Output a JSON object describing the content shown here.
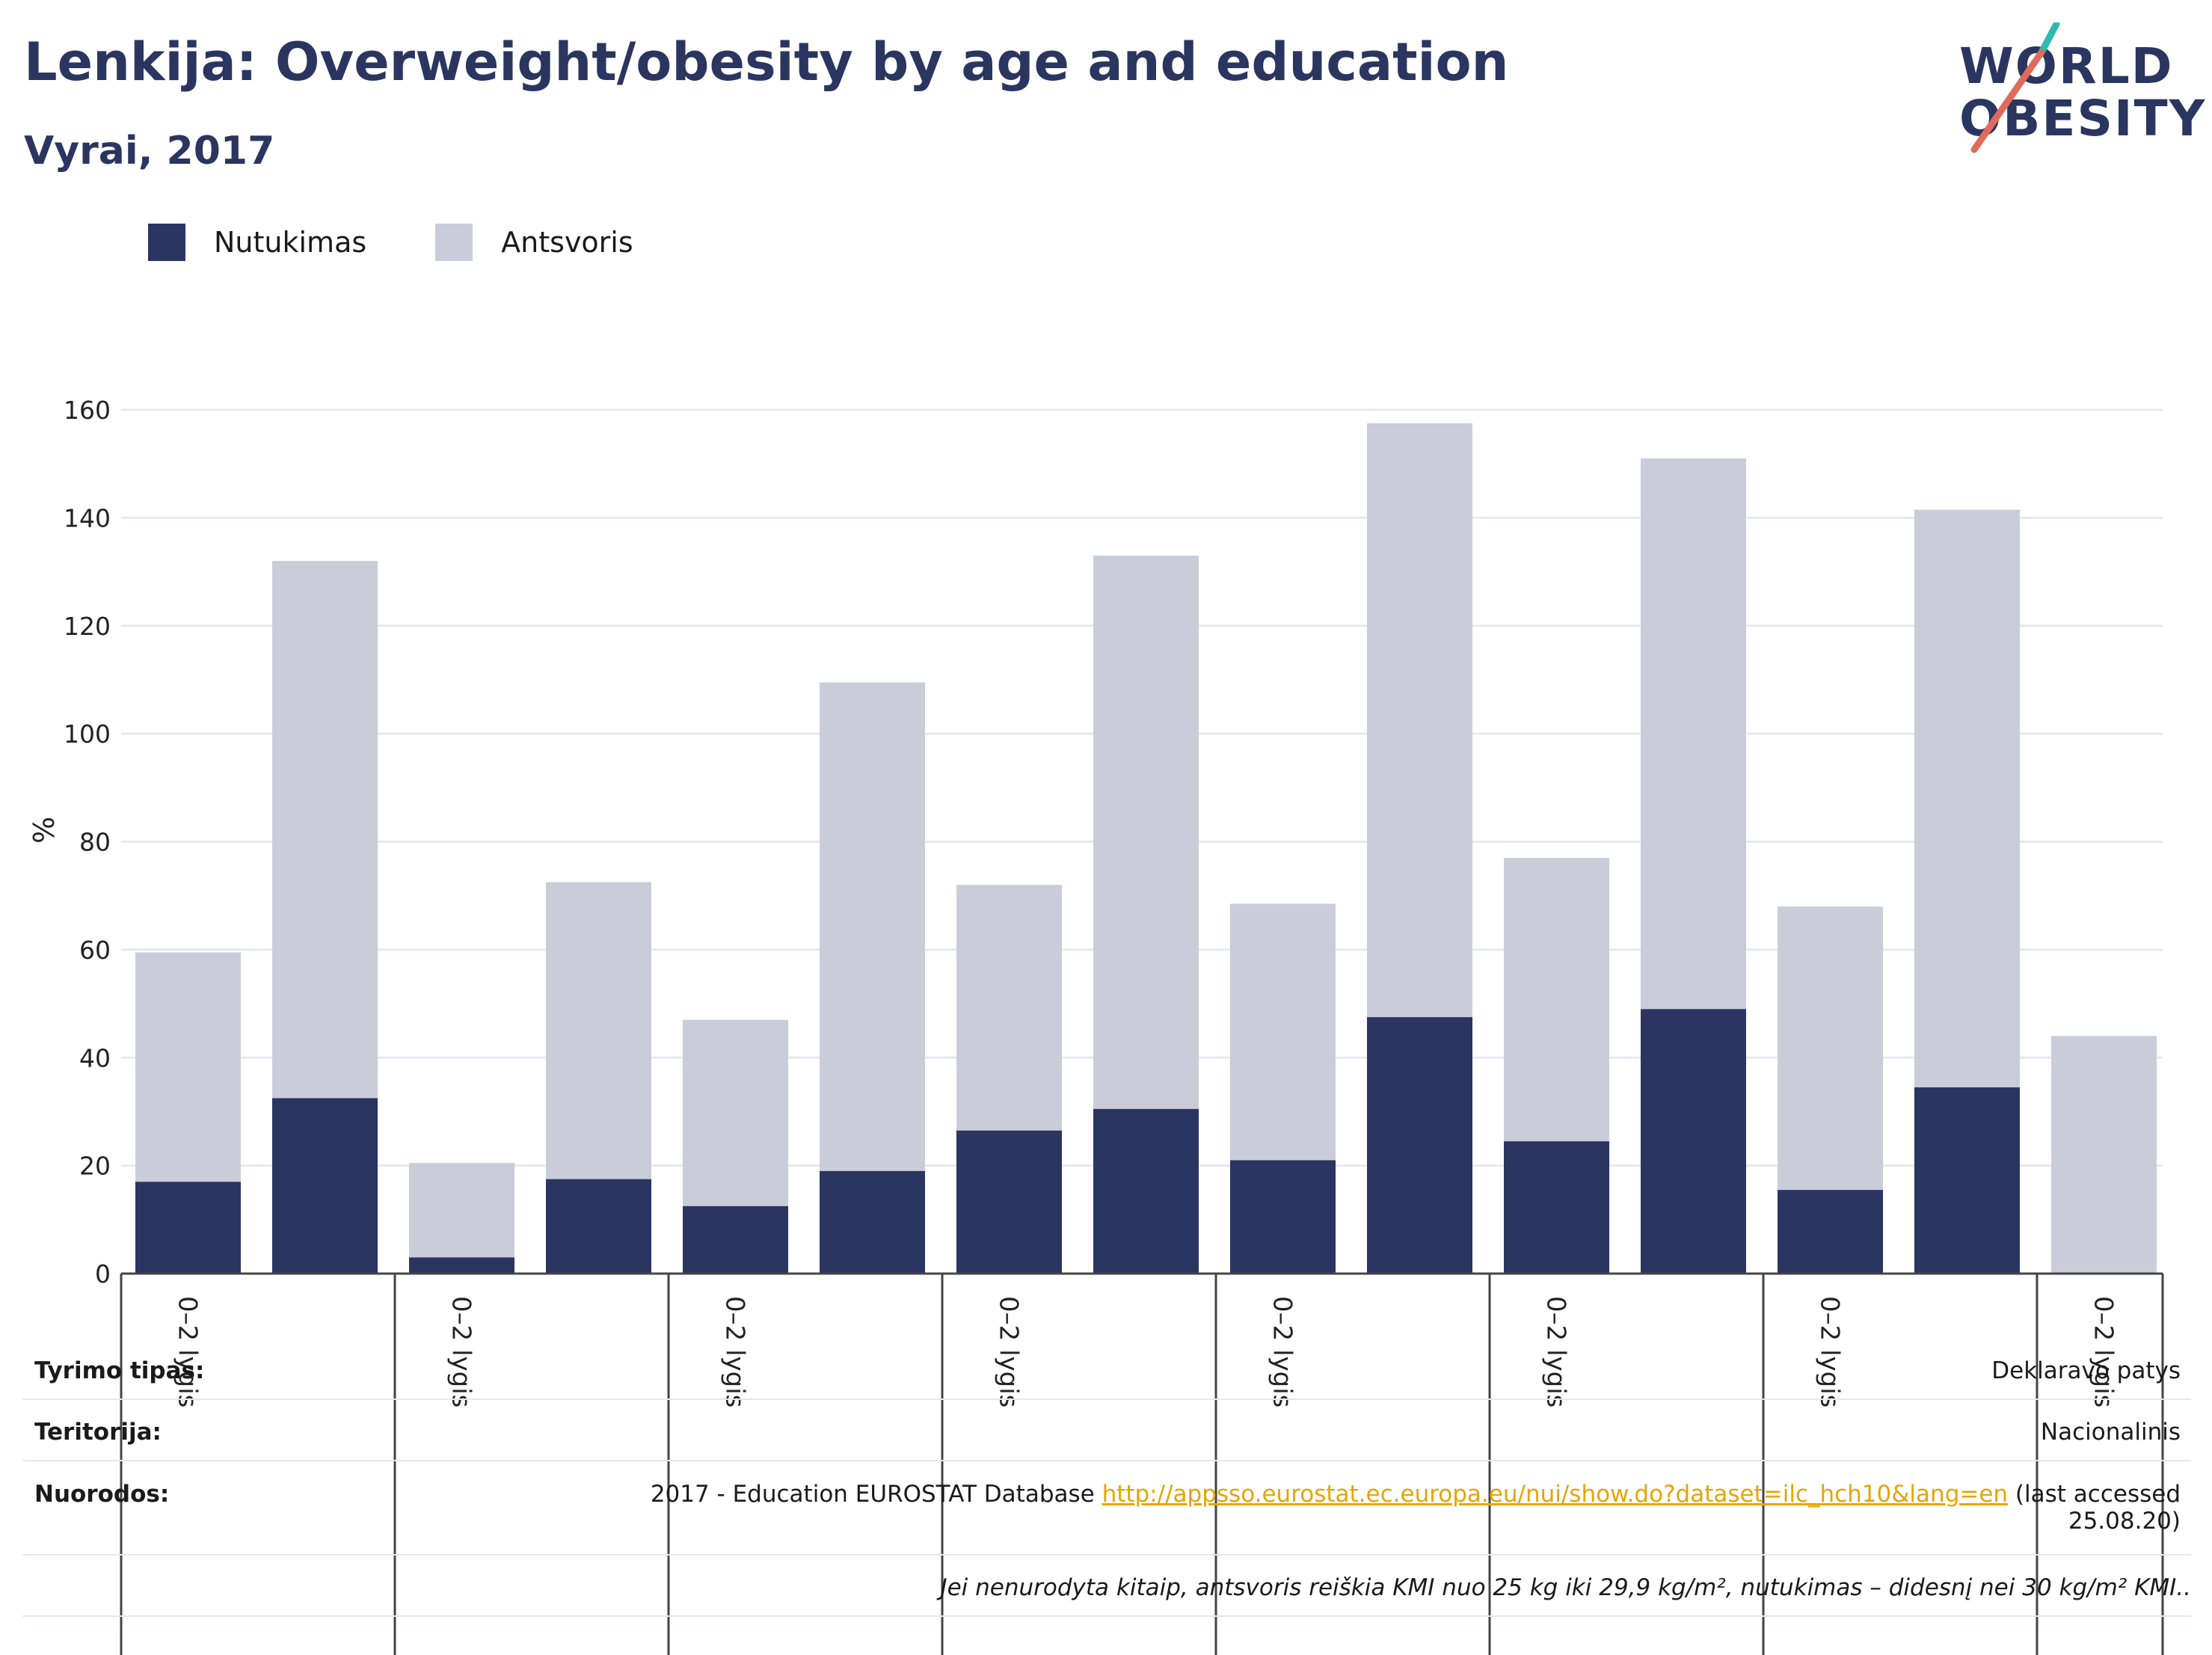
{
  "header": {
    "title": "Lenkija: Overweight/obesity by age and education",
    "subtitle": "Vyrai, 2017"
  },
  "logo": {
    "line1": "WORLD",
    "line2": "OBESITY"
  },
  "colors": {
    "obesity": "#2a3562",
    "overweight": "#cbccd9",
    "accent_teal": "#2bbbb0",
    "accent_red": "#e06a5c",
    "text_dark": "#2a3560",
    "link": "#e6a500"
  },
  "legend": {
    "obesity_label": "Nutukimas",
    "overweight_label": "Antsvoris"
  },
  "chart_data": {
    "type": "bar",
    "stacked": true,
    "ylabel": "%",
    "ylim": [
      0,
      160
    ],
    "yticks": [
      0,
      20,
      40,
      60,
      80,
      100,
      120,
      140,
      160
    ],
    "grid": true,
    "legend_position": "top-left",
    "group_label": "0–2 lygis",
    "series": [
      {
        "name": "Nutukimas",
        "values": [
          17,
          32.5,
          3,
          17.5,
          12.5,
          19,
          26.5,
          30.5,
          21,
          47.5,
          24.5,
          49,
          15.5,
          34.5,
          0
        ]
      },
      {
        "name": "Antsvoris",
        "values": [
          42.5,
          99.5,
          17.5,
          55,
          34.5,
          90.5,
          45.5,
          102.5,
          47.5,
          110,
          52.5,
          102,
          52.5,
          107,
          44
        ]
      }
    ]
  },
  "info": {
    "survey_type_label": "Tyrimo tipas:",
    "survey_type_value": "Deklaravo patys",
    "territory_label": "Teritorija:",
    "territory_value": "Nacionalinis",
    "references_label": "Nuorodos:",
    "references_text": "2017 - Education EUROSTAT Database",
    "references_link": "http://appsso.eurostat.ec.europa.eu/nui/show.do?dataset=ilc_hch10&lang=en",
    "references_suffix": "(last accessed",
    "references_date": "25.08.20)",
    "footnote": "Jei nenurodyta kitaip, antsvoris reiškia KMI nuo 25 kg iki 29,9 kg/m², nutukimas – didesnį nei 30 kg/m² KMI.."
  }
}
